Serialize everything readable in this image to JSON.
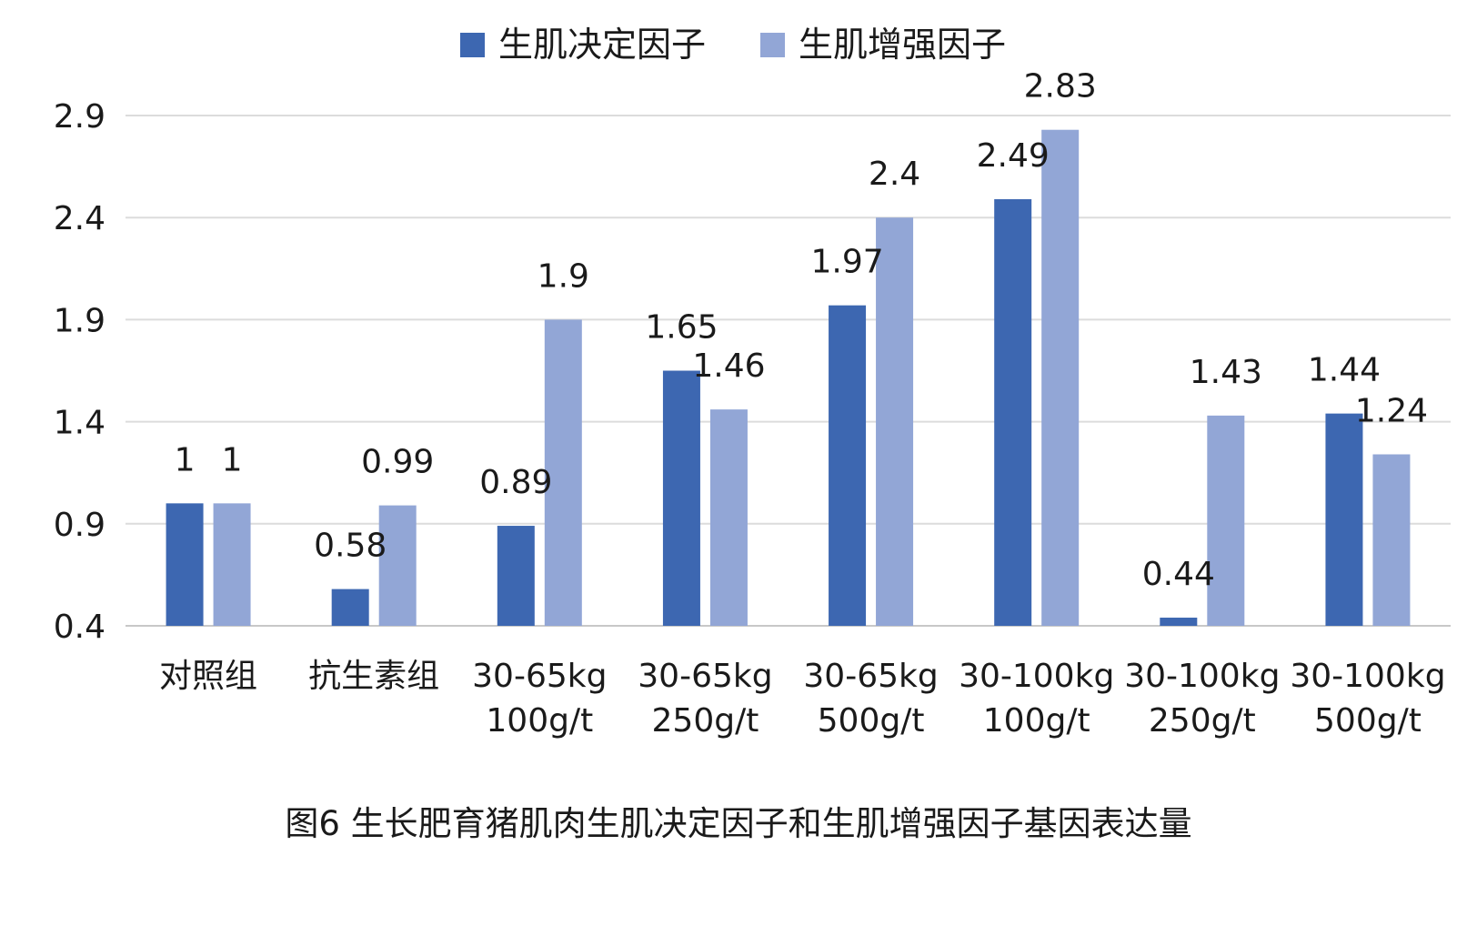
{
  "chart_data": {
    "type": "bar",
    "categories": [
      [
        "对照组"
      ],
      [
        "抗生素组"
      ],
      [
        "30-65kg",
        "100g/t"
      ],
      [
        "30-65kg",
        "250g/t"
      ],
      [
        "30-65kg",
        "500g/t"
      ],
      [
        "30-100kg",
        "100g/t"
      ],
      [
        "30-100kg",
        "250g/t"
      ],
      [
        "30-100kg",
        "500g/t"
      ]
    ],
    "series": [
      {
        "name": "生肌决定因子",
        "color": "#3d67b1",
        "values": [
          1,
          0.58,
          0.89,
          1.65,
          1.97,
          2.49,
          0.44,
          1.44
        ],
        "labels": [
          "1",
          "0.58",
          "0.89",
          "1.65",
          "1.97",
          "2.49",
          "0.44",
          "1.44"
        ]
      },
      {
        "name": "生肌增强因子",
        "color": "#92a6d6",
        "values": [
          1,
          0.99,
          1.9,
          1.46,
          2.4,
          2.83,
          1.43,
          1.24
        ],
        "labels": [
          "1",
          "0.99",
          "1.9",
          "1.46",
          "2.4",
          "2.83",
          "1.43",
          "1.24"
        ]
      }
    ],
    "ylim": [
      0.4,
      2.9
    ],
    "yticks": [
      "0.4",
      "0.9",
      "1.4",
      "1.9",
      "2.4",
      "2.9"
    ],
    "grid": true,
    "legend_position": "top-center",
    "caption": "图6 生长肥育猪肌肉生肌决定因子和生肌增强因子基因表达量"
  }
}
